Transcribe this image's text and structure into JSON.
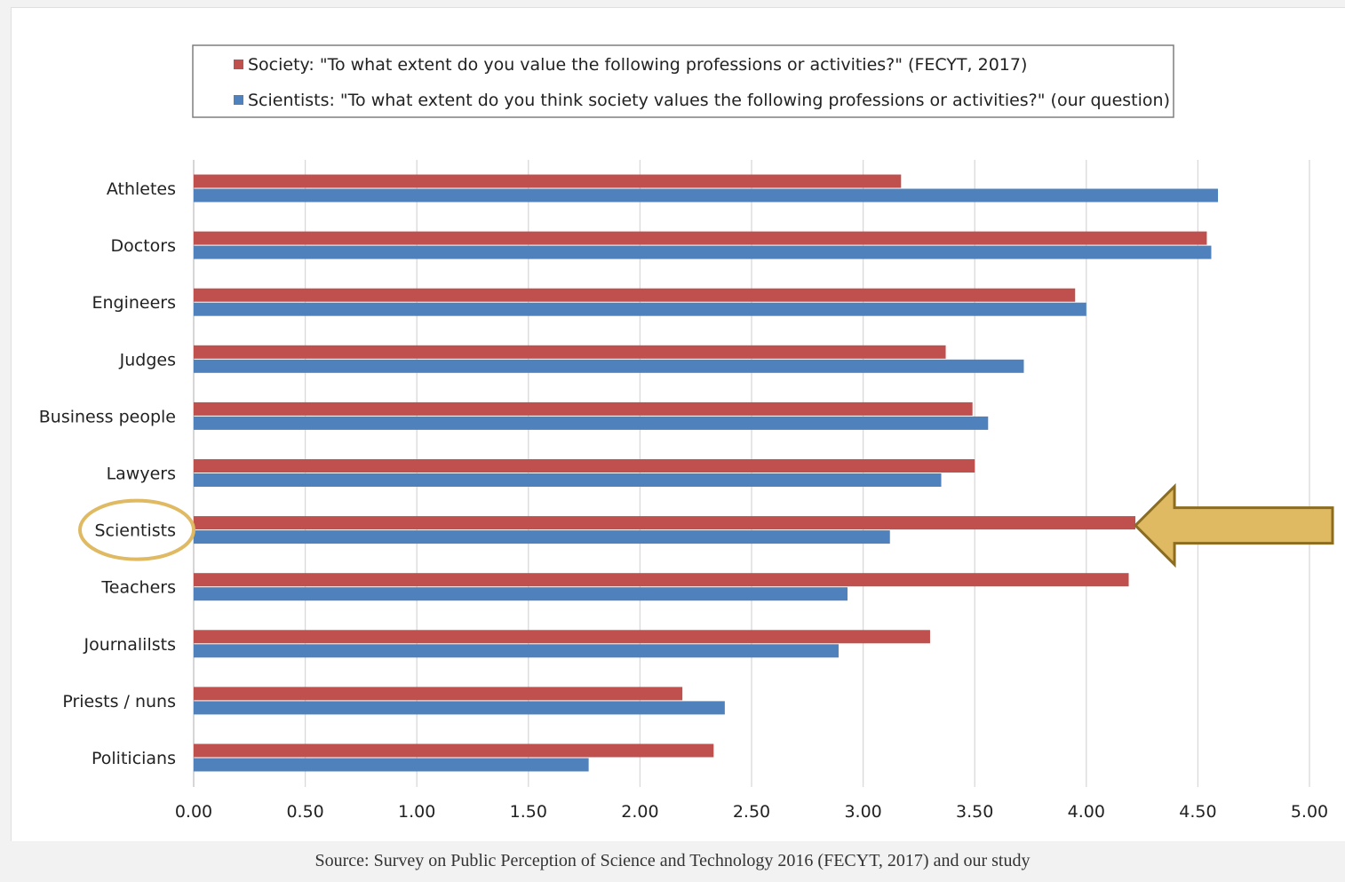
{
  "chart_data": {
    "type": "bar",
    "orientation": "horizontal",
    "categories": [
      "Athletes",
      "Doctors",
      "Engineers",
      "Judges",
      "Business people",
      "Lawyers",
      "Scientists",
      "Teachers",
      "Journalilsts",
      "Priests / nuns",
      "Politicians"
    ],
    "series": [
      {
        "name": "Society: \"To what extent do you value the following professions or activities?\" (FECYT, 2017)",
        "color": "#c0504d",
        "values": [
          3.17,
          4.54,
          3.95,
          3.37,
          3.49,
          3.5,
          4.22,
          4.19,
          3.3,
          2.19,
          2.33
        ]
      },
      {
        "name": "Scientists: \"To what extent do you think society values the following professions or activities?\" (our question)",
        "color": "#4f81bd",
        "values": [
          4.59,
          4.56,
          4.0,
          3.72,
          3.56,
          3.35,
          3.12,
          2.93,
          2.89,
          2.38,
          1.77
        ]
      }
    ],
    "xlim": [
      0,
      5
    ],
    "xticks": [
      "0.00",
      "0.50",
      "1.00",
      "1.50",
      "2.00",
      "2.50",
      "3.00",
      "3.50",
      "4.00",
      "4.50",
      "5.00"
    ],
    "grid": "vertical",
    "legend": "top",
    "highlight": {
      "category": "Scientists",
      "style": "circled label and arrow pointing at bar",
      "color": "#e0b963"
    }
  },
  "source": "Source: Survey on Public Perception of Science and Technology 2016 (FECYT, 2017) and our study"
}
